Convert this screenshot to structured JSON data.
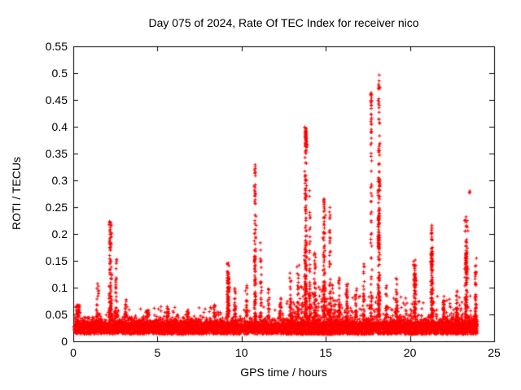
{
  "chart_data": {
    "type": "scatter",
    "title": "Day 075 of 2024, Rate Of TEC Index for receiver nico",
    "xlabel": "GPS time / hours",
    "ylabel": "ROTI / TECUs",
    "xlim": [
      0,
      25
    ],
    "ylim": [
      0,
      0.55
    ],
    "xticks": [
      0,
      5,
      10,
      15,
      20,
      25
    ],
    "xtick_labels": [
      "0",
      "5",
      "10",
      "15",
      "20",
      "25"
    ],
    "yticks": [
      0,
      0.05,
      0.1,
      0.15,
      0.2,
      0.25,
      0.3,
      0.35,
      0.4,
      0.45,
      0.5,
      0.55
    ],
    "ytick_labels": [
      "0",
      "0.05",
      "0.1",
      "0.15",
      "0.2",
      "0.25",
      "0.3",
      "0.35",
      "0.4",
      "0.45",
      "0.5",
      "0.55"
    ],
    "grid": false,
    "legend": "none",
    "marker": "plus",
    "marker_color": "#ff0000",
    "marker_size_px": 5,
    "axis_color": "#000000",
    "background_color": "#ffffff",
    "seed": 75,
    "baseline_band": {
      "t0": 0.03,
      "t1": 24.0,
      "n": 6000,
      "y_floor": 0.013,
      "h_uniform": 0.018,
      "h_quad": 0.02
    },
    "extra_scatter": [
      {
        "t0": 0.0,
        "t1": 24.0,
        "ymax": 0.065,
        "n": 700
      },
      {
        "t0": 12.5,
        "t1": 24.0,
        "ymax": 0.085,
        "n": 450
      },
      {
        "t0": 13.4,
        "t1": 15.6,
        "ymax": 0.105,
        "n": 220
      }
    ],
    "spike_columns": [
      {
        "t": 0.25,
        "peak": 0.068,
        "n": 40,
        "spread": 0.2
      },
      {
        "t": 1.45,
        "peak": 0.115,
        "n": 20,
        "spread": 0.15
      },
      {
        "t": 2.2,
        "peak": 0.225,
        "n": 110,
        "spread": 0.13
      },
      {
        "t": 2.55,
        "peak": 0.16,
        "n": 35,
        "spread": 0.07
      },
      {
        "t": 3.1,
        "peak": 0.08,
        "n": 20,
        "spread": 0.1
      },
      {
        "t": 4.4,
        "peak": 0.062,
        "n": 15,
        "spread": 0.12
      },
      {
        "t": 5.6,
        "peak": 0.068,
        "n": 18,
        "spread": 0.12
      },
      {
        "t": 6.8,
        "peak": 0.06,
        "n": 12,
        "spread": 0.1
      },
      {
        "t": 8.4,
        "peak": 0.07,
        "n": 15,
        "spread": 0.1
      },
      {
        "t": 9.2,
        "peak": 0.15,
        "n": 70,
        "spread": 0.12
      },
      {
        "t": 9.6,
        "peak": 0.1,
        "n": 25,
        "spread": 0.08
      },
      {
        "t": 10.3,
        "peak": 0.12,
        "n": 25,
        "spread": 0.08
      },
      {
        "t": 10.8,
        "peak": 0.33,
        "n": 90,
        "spread": 0.08
      },
      {
        "t": 11.15,
        "peak": 0.19,
        "n": 30,
        "spread": 0.06
      },
      {
        "t": 11.6,
        "peak": 0.1,
        "n": 18,
        "spread": 0.08
      },
      {
        "t": 12.3,
        "peak": 0.085,
        "n": 20,
        "spread": 0.1
      },
      {
        "t": 12.9,
        "peak": 0.13,
        "n": 25,
        "spread": 0.08
      },
      {
        "t": 13.35,
        "peak": 0.155,
        "n": 30,
        "spread": 0.08
      },
      {
        "t": 13.8,
        "peak": 0.4,
        "n": 160,
        "spread": 0.1
      },
      {
        "t": 14.05,
        "peak": 0.3,
        "n": 40,
        "spread": 0.05
      },
      {
        "t": 14.35,
        "peak": 0.17,
        "n": 35,
        "spread": 0.07
      },
      {
        "t": 14.9,
        "peak": 0.27,
        "n": 80,
        "spread": 0.1
      },
      {
        "t": 15.25,
        "peak": 0.25,
        "n": 40,
        "spread": 0.07
      },
      {
        "t": 15.8,
        "peak": 0.12,
        "n": 25,
        "spread": 0.08
      },
      {
        "t": 16.25,
        "peak": 0.11,
        "n": 30,
        "spread": 0.1
      },
      {
        "t": 16.8,
        "peak": 0.1,
        "n": 20,
        "spread": 0.08
      },
      {
        "t": 17.25,
        "peak": 0.15,
        "n": 25,
        "spread": 0.07
      },
      {
        "t": 17.7,
        "peak": 0.46,
        "n": 60,
        "spread": 0.08
      },
      {
        "t": 18.15,
        "peak": 0.5,
        "n": 130,
        "spread": 0.1
      },
      {
        "t": 18.6,
        "peak": 0.12,
        "n": 20,
        "spread": 0.07
      },
      {
        "t": 19.2,
        "peak": 0.12,
        "n": 30,
        "spread": 0.1
      },
      {
        "t": 20.3,
        "peak": 0.155,
        "n": 60,
        "spread": 0.12
      },
      {
        "t": 21.3,
        "peak": 0.22,
        "n": 90,
        "spread": 0.1
      },
      {
        "t": 22.0,
        "peak": 0.085,
        "n": 25,
        "spread": 0.1
      },
      {
        "t": 22.8,
        "peak": 0.1,
        "n": 25,
        "spread": 0.08
      },
      {
        "t": 23.35,
        "peak": 0.235,
        "n": 90,
        "spread": 0.12
      },
      {
        "t": 23.9,
        "peak": 0.155,
        "n": 40,
        "spread": 0.07
      }
    ],
    "peak_blobs": [
      {
        "t": 13.82,
        "y0": 0.365,
        "y1": 0.4,
        "n": 35,
        "spread": 0.05
      },
      {
        "t": 17.7,
        "y0": 0.43,
        "y1": 0.465,
        "n": 12,
        "spread": 0.04
      },
      {
        "t": 18.15,
        "y0": 0.17,
        "y1": 0.235,
        "n": 45,
        "spread": 0.07
      },
      {
        "t": 18.15,
        "y0": 0.44,
        "y1": 0.505,
        "n": 8,
        "spread": 0.05
      },
      {
        "t": 18.2,
        "y0": 0.28,
        "y1": 0.305,
        "n": 8,
        "spread": 0.03
      },
      {
        "t": 14.9,
        "y0": 0.24,
        "y1": 0.27,
        "n": 8,
        "spread": 0.04
      },
      {
        "t": 10.8,
        "y0": 0.25,
        "y1": 0.33,
        "n": 10,
        "spread": 0.04
      },
      {
        "t": 21.3,
        "y0": 0.13,
        "y1": 0.165,
        "n": 25,
        "spread": 0.06
      },
      {
        "t": 23.35,
        "y0": 0.13,
        "y1": 0.165,
        "n": 25,
        "spread": 0.07
      },
      {
        "t": 23.55,
        "y0": 0.26,
        "y1": 0.285,
        "n": 3,
        "spread": 0.03
      },
      {
        "t": 20.3,
        "y0": 0.1,
        "y1": 0.13,
        "n": 20,
        "spread": 0.08
      },
      {
        "t": 9.2,
        "y0": 0.07,
        "y1": 0.12,
        "n": 25,
        "spread": 0.08
      }
    ]
  }
}
